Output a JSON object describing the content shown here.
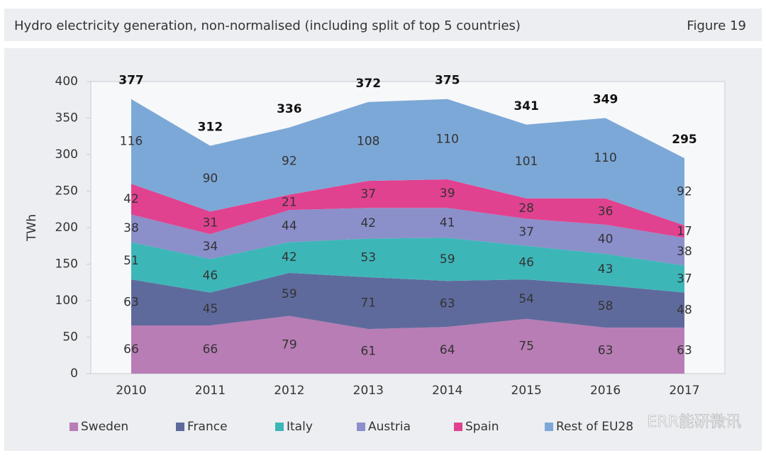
{
  "header": {
    "title": "Hydro electricity generation, non-normalised (including split of top 5 countries)",
    "figure": "Figure 19"
  },
  "chart_data": {
    "type": "stacked-area",
    "y_label": "TWh",
    "categories": [
      "2010",
      "2011",
      "2012",
      "2013",
      "2014",
      "2015",
      "2016",
      "2017"
    ],
    "series": [
      {
        "name": "Sweden",
        "color": "#b87db5",
        "values": [
          66,
          66,
          79,
          61,
          64,
          75,
          63,
          63
        ]
      },
      {
        "name": "France",
        "color": "#5f6a9c",
        "values": [
          63,
          45,
          59,
          71,
          63,
          54,
          58,
          48
        ]
      },
      {
        "name": "Italy",
        "color": "#3db6b8",
        "values": [
          51,
          46,
          42,
          53,
          59,
          46,
          43,
          37
        ]
      },
      {
        "name": "Austria",
        "color": "#8b8fca",
        "values": [
          38,
          34,
          44,
          42,
          41,
          37,
          40,
          38
        ]
      },
      {
        "name": "Spain",
        "color": "#e0428f",
        "values": [
          42,
          31,
          21,
          37,
          39,
          28,
          36,
          17
        ]
      },
      {
        "name": "Rest of EU28",
        "color": "#7ca8d7",
        "values": [
          116,
          90,
          92,
          108,
          110,
          101,
          110,
          92
        ]
      }
    ],
    "totals": [
      377,
      312,
      336,
      372,
      375,
      341,
      349,
      295
    ],
    "ylim": [
      0,
      400
    ],
    "yticks": [
      0,
      50,
      100,
      150,
      200,
      250,
      300,
      350,
      400
    ],
    "grid": false
  },
  "watermark": "ERR能研微讯"
}
